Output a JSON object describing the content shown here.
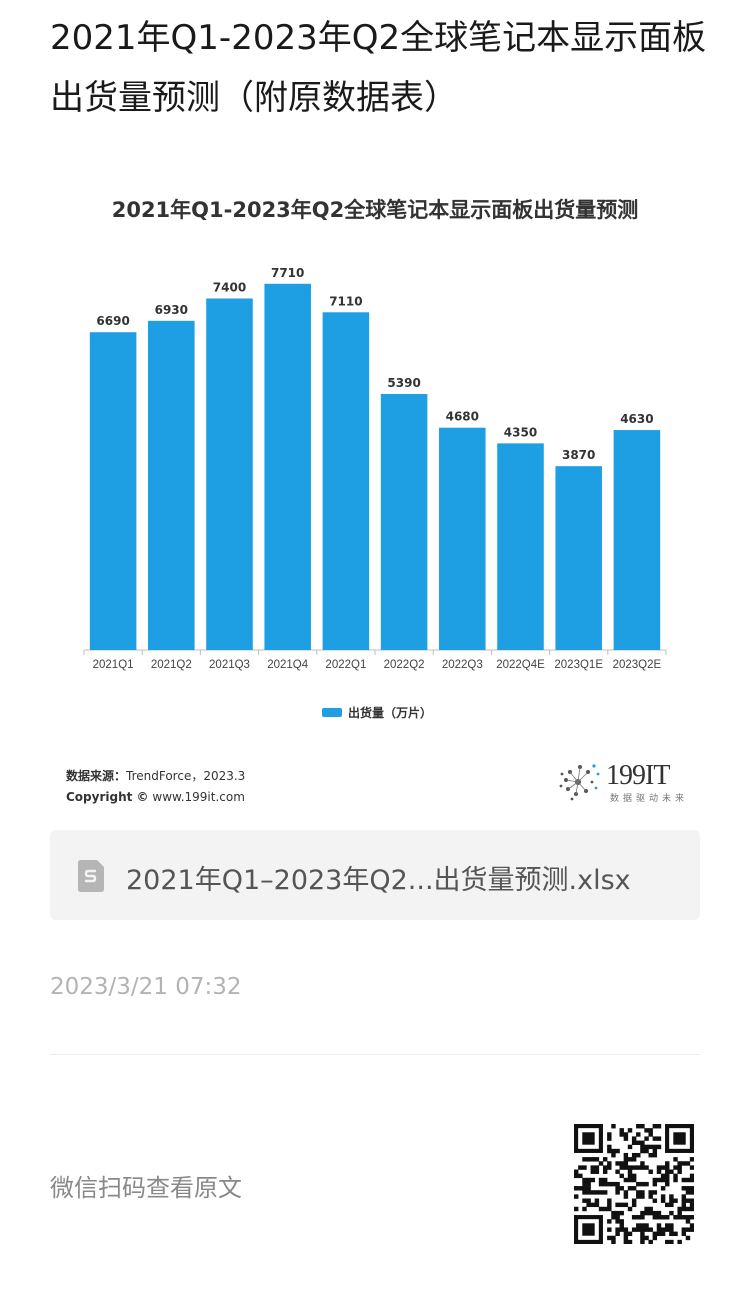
{
  "article": {
    "title": "2021年Q1-2023年Q2全球笔记本显示面板出货量预测（附原数据表）"
  },
  "chart_data": {
    "type": "bar",
    "title": "2021年Q1-2023年Q2全球笔记本显示面板出货量预测",
    "categories": [
      "2021Q1",
      "2021Q2",
      "2021Q3",
      "2021Q4",
      "2022Q1",
      "2022Q2",
      "2022Q3",
      "2022Q4E",
      "2023Q1E",
      "2023Q2E"
    ],
    "series": [
      {
        "name": "出货量（万片）",
        "values": [
          6690,
          6930,
          7400,
          7710,
          7110,
          5390,
          4680,
          4350,
          3870,
          4630
        ]
      }
    ],
    "data_labels": [
      "6690",
      "6930",
      "7400",
      "7710",
      "7110",
      "5390",
      "4680",
      "4350",
      "3870",
      "4630"
    ],
    "ylim": [
      0,
      8000
    ],
    "grid": false,
    "legend_position": "bottom",
    "bar_color": "#1E9FE3"
  },
  "chart_footer": {
    "source_label": "数据来源：",
    "source_value": "TrendForce，2023.3",
    "copyright_label": "Copyright ©",
    "copyright_value": "www.199it.com",
    "brand_name": "199IT",
    "brand_tagline": "数据驱动未来"
  },
  "attachment": {
    "icon": "file-spreadsheet-icon",
    "file_name": "2021年Q1–2023年Q2...出货量预测.xlsx"
  },
  "meta": {
    "timestamp": "2023/3/21 07:32",
    "scan_text": "微信扫码查看原文"
  }
}
